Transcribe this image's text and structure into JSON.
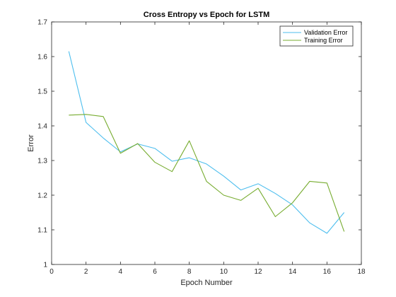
{
  "chart_data": {
    "type": "line",
    "title": "Cross Entropy vs Epoch for LSTM",
    "xlabel": "Epoch Number",
    "ylabel": "Error",
    "xlim": [
      0,
      18
    ],
    "ylim": [
      1,
      1.7
    ],
    "xticks": [
      "0",
      "2",
      "4",
      "6",
      "8",
      "10",
      "12",
      "14",
      "16",
      "18"
    ],
    "yticks": [
      "1",
      "1.1",
      "1.2",
      "1.3",
      "1.4",
      "1.5",
      "1.6",
      "1.7"
    ],
    "x": [
      1,
      2,
      3,
      4,
      5,
      6,
      7,
      8,
      9,
      10,
      11,
      12,
      13,
      14,
      15,
      16,
      17
    ],
    "series": [
      {
        "name": "Validation Error",
        "color": "#4DBEEE",
        "values": [
          1.615,
          1.41,
          1.365,
          1.325,
          1.348,
          1.335,
          1.298,
          1.308,
          1.29,
          1.255,
          1.215,
          1.233,
          1.205,
          1.172,
          1.12,
          1.09,
          1.15
        ]
      },
      {
        "name": "Training Error",
        "color": "#77AC30",
        "values": [
          1.431,
          1.433,
          1.427,
          1.321,
          1.349,
          1.295,
          1.268,
          1.357,
          1.24,
          1.2,
          1.185,
          1.22,
          1.138,
          1.178,
          1.24,
          1.235,
          1.095
        ]
      }
    ],
    "grid": false,
    "legend_position": "top-right"
  }
}
